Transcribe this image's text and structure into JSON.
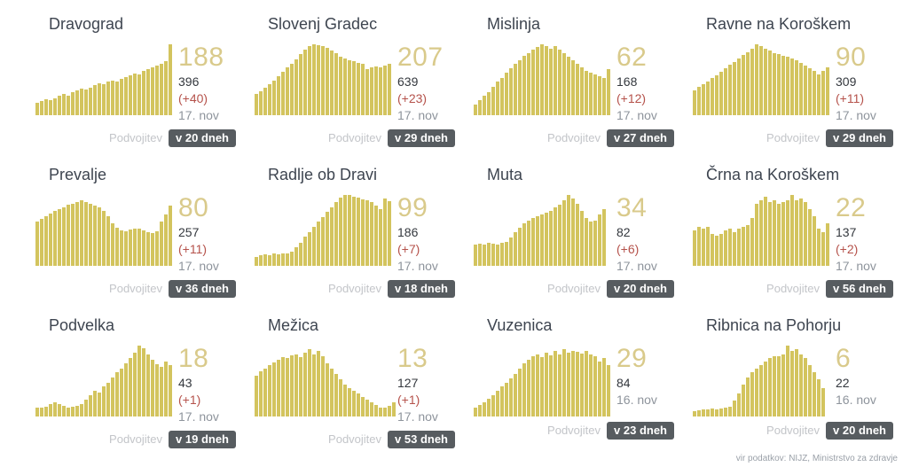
{
  "labels": {
    "doubling": "Podvojitev"
  },
  "colors": {
    "bar": "#d3c45e",
    "big_number": "#d9ca8b",
    "total_text": "#34383e",
    "delta_text": "#b5524b",
    "date_text": "#8e949c",
    "title_text": "#3e4550",
    "doubling_label": "#c3c5c9",
    "badge_bg": "#575c60",
    "badge_text": "#ffffff"
  },
  "footer": {
    "source_note": "vir podatkov: NIJZ, Ministrstvo za zdravje"
  },
  "cards": [
    {
      "title": "Dravograd",
      "big_number": "188",
      "total": "396",
      "delta": "(+40)",
      "date": "17. nov",
      "badge": "v 20 dneh"
    },
    {
      "title": "Slovenj Gradec",
      "big_number": "207",
      "total": "639",
      "delta": "(+23)",
      "date": "17. nov",
      "badge": "v 29 dneh"
    },
    {
      "title": "Mislinja",
      "big_number": "62",
      "total": "168",
      "delta": "(+12)",
      "date": "17. nov",
      "badge": "v 27 dneh"
    },
    {
      "title": "Ravne na Koroškem",
      "big_number": "90",
      "total": "309",
      "delta": "(+11)",
      "date": "17. nov",
      "badge": "v 29 dneh"
    },
    {
      "title": "Prevalje",
      "big_number": "80",
      "total": "257",
      "delta": "(+11)",
      "date": "17. nov",
      "badge": "v 36 dneh"
    },
    {
      "title": "Radlje ob Dravi",
      "big_number": "99",
      "total": "186",
      "delta": "(+7)",
      "date": "17. nov",
      "badge": "v 18 dneh"
    },
    {
      "title": "Muta",
      "big_number": "34",
      "total": "82",
      "delta": "(+6)",
      "date": "17. nov",
      "badge": "v 20 dneh"
    },
    {
      "title": "Črna na Koroškem",
      "big_number": "22",
      "total": "137",
      "delta": "(+2)",
      "date": "17. nov",
      "badge": "v 56 dneh"
    },
    {
      "title": "Podvelka",
      "big_number": "18",
      "total": "43",
      "delta": "(+1)",
      "date": "17. nov",
      "badge": "v 19 dneh"
    },
    {
      "title": "Mežica",
      "big_number": "13",
      "total": "127",
      "delta": "(+1)",
      "date": "17. nov",
      "badge": "v 53 dneh"
    },
    {
      "title": "Vuzenica",
      "big_number": "29",
      "total": "84",
      "date": "16. nov",
      "badge": "v 23 dneh"
    },
    {
      "title": "Ribnica na Pohorju",
      "big_number": "6",
      "total": "22",
      "date": "16. nov",
      "badge": "v 20 dneh"
    }
  ],
  "chart_data": [
    {
      "type": "bar",
      "title": "Dravograd",
      "ylim": [
        0,
        100
      ],
      "unit": "relative height % (estimated from pixels)",
      "values": [
        18,
        20,
        22,
        21,
        24,
        27,
        30,
        28,
        32,
        35,
        37,
        36,
        39,
        42,
        45,
        44,
        47,
        49,
        48,
        51,
        54,
        56,
        59,
        58,
        62,
        65,
        68,
        70,
        73,
        76,
        100
      ]
    },
    {
      "type": "bar",
      "title": "Slovenj Gradec",
      "ylim": [
        0,
        100
      ],
      "unit": "relative height % (estimated from pixels)",
      "values": [
        30,
        34,
        39,
        44,
        49,
        55,
        61,
        67,
        73,
        79,
        86,
        92,
        97,
        100,
        99,
        97,
        95,
        91,
        87,
        83,
        80,
        78,
        76,
        74,
        73,
        65,
        67,
        69,
        68,
        70,
        73
      ]
    },
    {
      "type": "bar",
      "title": "Mislinja",
      "ylim": [
        0,
        100
      ],
      "unit": "relative height % (estimated from pixels)",
      "values": [
        15,
        21,
        27,
        33,
        40,
        47,
        53,
        60,
        66,
        72,
        78,
        84,
        88,
        92,
        96,
        100,
        97,
        94,
        98,
        93,
        88,
        83,
        78,
        72,
        68,
        63,
        60,
        57,
        55,
        53,
        65
      ]
    },
    {
      "type": "bar",
      "title": "Ravne na Koroškem",
      "ylim": [
        0,
        100
      ],
      "unit": "relative height % (estimated from pixels)",
      "values": [
        35,
        40,
        44,
        48,
        52,
        56,
        61,
        66,
        71,
        75,
        80,
        85,
        89,
        94,
        100,
        97,
        94,
        91,
        88,
        86,
        84,
        82,
        80,
        77,
        74,
        70,
        66,
        62,
        58,
        62,
        67
      ]
    },
    {
      "type": "bar",
      "title": "Prevalje",
      "ylim": [
        0,
        100
      ],
      "unit": "relative height % (estimated from pixels)",
      "values": [
        62,
        66,
        70,
        74,
        77,
        80,
        83,
        86,
        88,
        90,
        92,
        90,
        88,
        85,
        82,
        78,
        70,
        60,
        54,
        50,
        49,
        51,
        52,
        53,
        50,
        47,
        46,
        49,
        62,
        72,
        85
      ]
    },
    {
      "type": "bar",
      "title": "Radlje ob Dravi",
      "ylim": [
        0,
        100
      ],
      "unit": "relative height % (estimated from pixels)",
      "values": [
        13,
        15,
        16,
        15,
        17,
        16,
        18,
        17,
        20,
        26,
        33,
        41,
        48,
        55,
        62,
        69,
        76,
        83,
        90,
        96,
        100,
        100,
        98,
        96,
        94,
        92,
        90,
        85,
        80,
        95,
        91
      ]
    },
    {
      "type": "bar",
      "title": "Muta",
      "ylim": [
        0,
        100
      ],
      "unit": "relative height % (estimated from pixels)",
      "values": [
        30,
        31,
        30,
        32,
        31,
        30,
        32,
        34,
        40,
        47,
        54,
        60,
        64,
        67,
        70,
        72,
        75,
        78,
        82,
        86,
        92,
        100,
        95,
        88,
        78,
        68,
        62,
        64,
        72,
        80
      ]
    },
    {
      "type": "bar",
      "title": "Črna na Koroškem",
      "ylim": [
        0,
        100
      ],
      "unit": "relative height % (estimated from pixels)",
      "values": [
        50,
        55,
        52,
        55,
        45,
        42,
        45,
        50,
        53,
        48,
        53,
        55,
        58,
        68,
        88,
        92,
        97,
        90,
        92,
        88,
        90,
        93,
        100,
        92,
        95,
        90,
        80,
        70,
        52,
        48,
        60
      ]
    },
    {
      "type": "bar",
      "title": "Podvelka",
      "ylim": [
        0,
        100
      ],
      "unit": "relative height % (estimated from pixels)",
      "values": [
        12,
        13,
        14,
        18,
        20,
        18,
        15,
        13,
        14,
        15,
        18,
        24,
        30,
        36,
        34,
        42,
        48,
        55,
        62,
        68,
        75,
        82,
        90,
        100,
        96,
        88,
        80,
        74,
        70,
        78,
        72
      ]
    },
    {
      "type": "bar",
      "title": "Mežica",
      "ylim": [
        0,
        100
      ],
      "unit": "relative height % (estimated from pixels)",
      "values": [
        58,
        64,
        68,
        72,
        76,
        80,
        84,
        82,
        86,
        88,
        84,
        90,
        95,
        88,
        92,
        85,
        75,
        68,
        60,
        52,
        45,
        40,
        36,
        32,
        28,
        24,
        20,
        16,
        13,
        12,
        15,
        20
      ]
    },
    {
      "type": "bar",
      "title": "Vuzenica",
      "ylim": [
        0,
        100
      ],
      "unit": "relative height % (estimated from pixels)",
      "values": [
        12,
        16,
        20,
        25,
        30,
        36,
        42,
        48,
        54,
        60,
        68,
        75,
        80,
        85,
        88,
        84,
        90,
        86,
        92,
        88,
        95,
        90,
        93,
        91,
        89,
        92,
        88,
        85,
        78,
        82,
        72
      ]
    },
    {
      "type": "bar",
      "title": "Ribnica na Pohorju",
      "ylim": [
        0,
        100
      ],
      "unit": "relative height % (estimated from pixels)",
      "values": [
        8,
        9,
        10,
        10,
        11,
        10,
        11,
        12,
        14,
        22,
        32,
        45,
        55,
        62,
        68,
        72,
        78,
        82,
        85,
        85,
        88,
        100,
        92,
        95,
        88,
        82,
        72,
        62,
        52,
        40
      ]
    }
  ]
}
